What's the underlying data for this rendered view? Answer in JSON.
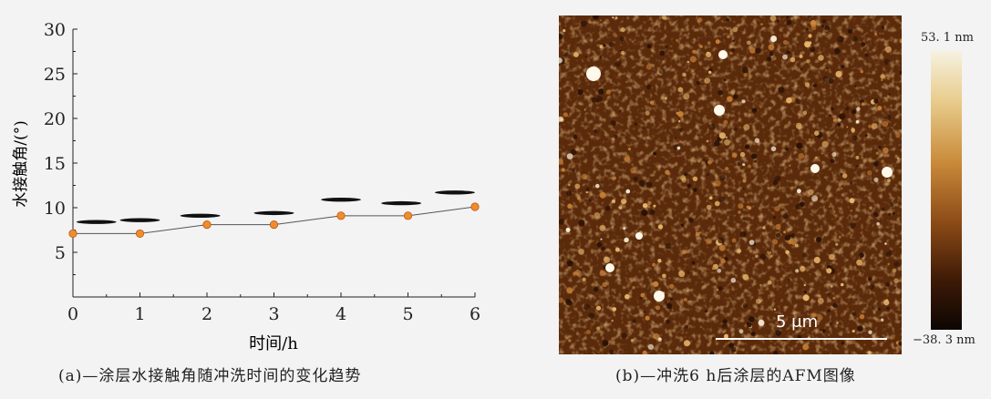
{
  "chart_data": {
    "type": "line",
    "x": [
      0,
      1,
      2,
      3,
      4,
      5,
      6
    ],
    "xticks": [
      "0",
      "1",
      "2",
      "3",
      "4",
      "5",
      "6"
    ],
    "yticks": [
      "5",
      "10",
      "15",
      "20",
      "25",
      "30"
    ],
    "series": [
      {
        "values": [
          7.1,
          7.1,
          8.1,
          8.1,
          9.1,
          9.1,
          10.1
        ],
        "color": "#f08c2e"
      }
    ],
    "droplets": [
      {
        "x": 0.35,
        "y": 8.4
      },
      {
        "x": 1.0,
        "y": 8.6
      },
      {
        "x": 1.9,
        "y": 9.1
      },
      {
        "x": 3.0,
        "y": 9.4
      },
      {
        "x": 4.0,
        "y": 10.9
      },
      {
        "x": 4.9,
        "y": 10.5
      },
      {
        "x": 5.7,
        "y": 11.7
      }
    ],
    "xlabel": "时间/h",
    "ylabel": "水接触角/(°)",
    "xlim": [
      0,
      6
    ],
    "ylim": [
      0,
      30
    ],
    "grid": false
  },
  "captions": {
    "a": "(a)—涂层水接触角随冲洗时间的变化趋势",
    "b": "(b)—冲洗6 h后涂层的AFM图像"
  },
  "afm": {
    "scale_label": "5 μm",
    "colorbar_max": "53. 1 nm",
    "colorbar_min": "−38. 3 nm"
  }
}
